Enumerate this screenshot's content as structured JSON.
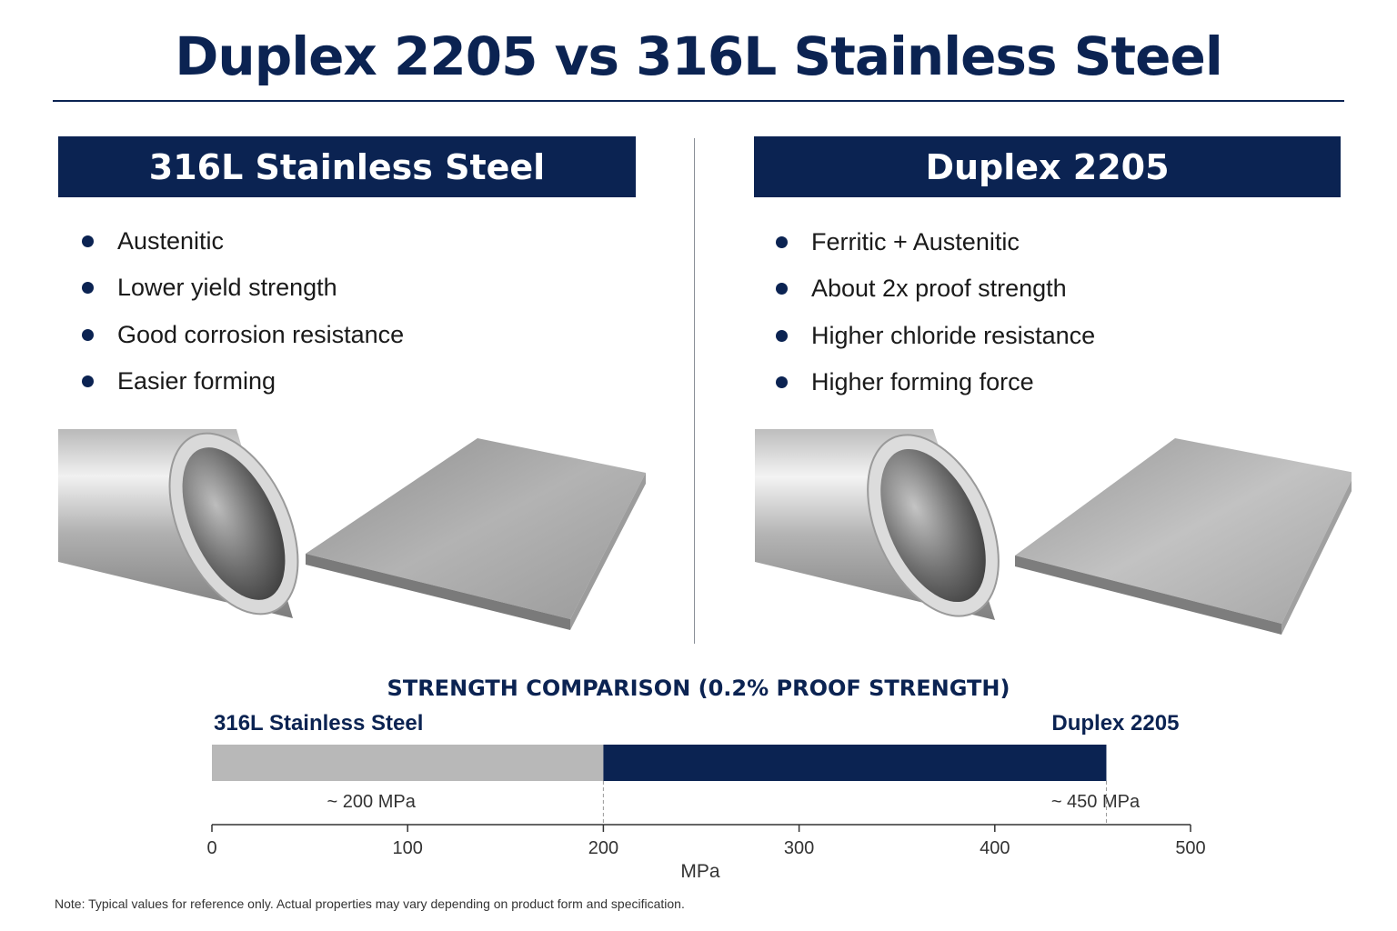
{
  "title": "Duplex 2205 vs 316L Stainless Steel",
  "colors": {
    "navy": "#0b2352",
    "gray_bar": "#b8b8b8",
    "steel_light": "#dcdcdc",
    "steel_dark": "#8a8a8a"
  },
  "panels": [
    {
      "header": "316L Stainless Steel",
      "bullets": [
        "Austenitic",
        "Lower yield strength",
        "Good corrosion resistance",
        "Easier forming"
      ],
      "images": [
        "steel-tube",
        "steel-plate"
      ]
    },
    {
      "header": "Duplex 2205",
      "bullets": [
        "Ferritic + Austenitic",
        "About 2x proof strength",
        "Higher chloride resistance",
        "Higher forming force"
      ],
      "images": [
        "steel-tube",
        "steel-plate"
      ]
    }
  ],
  "chart_data": {
    "type": "bar",
    "orientation": "horizontal",
    "title": "STRENGTH COMPARISON (0.2% PROOF STRENGTH)",
    "xlabel": "MPa",
    "xlim": [
      0,
      500
    ],
    "xticks": [
      0,
      100,
      200,
      300,
      400,
      500
    ],
    "series": [
      {
        "name": "316L Stainless Steel",
        "start": 0,
        "value": 200,
        "value_label": "~ 200 MPa",
        "color": "#b8b8b8"
      },
      {
        "name": "Duplex 2205",
        "start": 200,
        "value": 457,
        "value_label": "~ 450 MPa",
        "color": "#0b2352"
      }
    ]
  },
  "footnote": "Note: Typical values for reference only.  Actual properties may  vary  depending on product form and specification."
}
